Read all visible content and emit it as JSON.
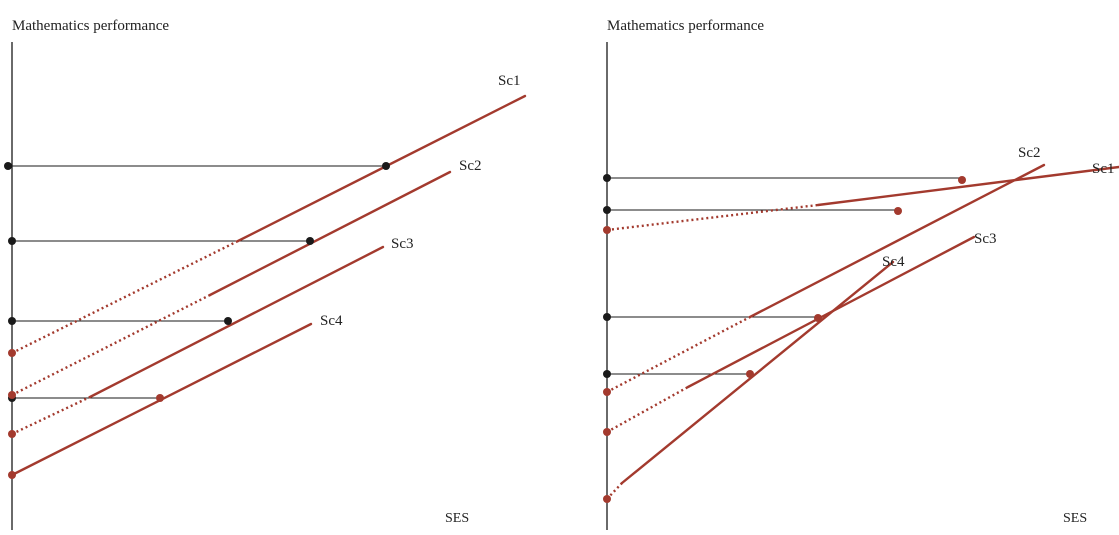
{
  "colors": {
    "axis": "#1a1a1a",
    "reference": "#1a1a1a",
    "regression": "#a33a2e",
    "dot_black": "#1a1a1a",
    "dot_red": "#a33a2e"
  },
  "panels": [
    {
      "id": "left",
      "y_axis_label": "Mathematics performance",
      "x_axis_label": "SES",
      "lines": [
        {
          "label": "Sc1",
          "slope": "equal",
          "intercept_rank": 2
        },
        {
          "label": "Sc2",
          "slope": "equal",
          "intercept_rank": 3
        },
        {
          "label": "Sc3",
          "slope": "equal",
          "intercept_rank": 4
        },
        {
          "label": "Sc4",
          "slope": "equal",
          "intercept_rank": 5
        }
      ]
    },
    {
      "id": "right",
      "y_axis_label": "Mathematics performance",
      "x_axis_label": "SES",
      "lines": [
        {
          "label": "Sc1",
          "slope": "flat"
        },
        {
          "label": "Sc2",
          "slope": "steep"
        },
        {
          "label": "Sc3",
          "slope": "medium"
        },
        {
          "label": "Sc4",
          "slope": "steepest"
        }
      ]
    }
  ]
}
